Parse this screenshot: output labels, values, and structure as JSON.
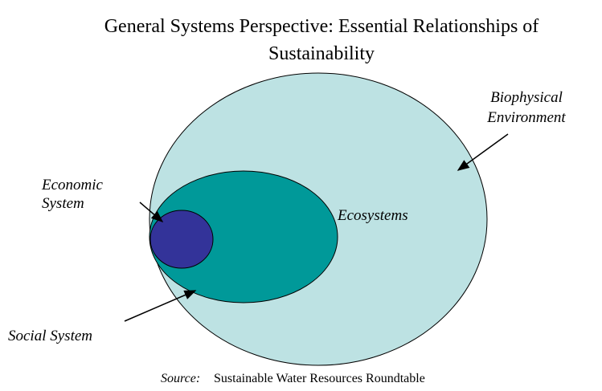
{
  "title": [
    "General Systems Perspective: Essential Relationships of",
    "Sustainability"
  ],
  "labels": {
    "biophysical": [
      "Biophysical",
      "Environment"
    ],
    "ecosystems": "Ecosystems",
    "economic": [
      "Economic",
      "System"
    ],
    "social": "Social System"
  },
  "source": {
    "label": "Source:",
    "text": "Sustainable Water Resources Roundtable"
  }
}
